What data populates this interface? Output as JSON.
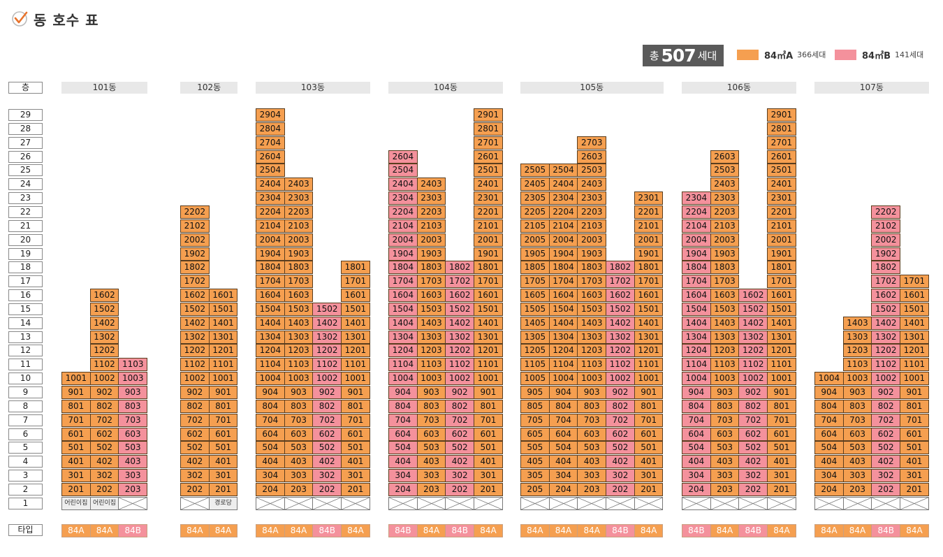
{
  "page_title": "동 호수 표",
  "summary": {
    "prefix": "총",
    "count": "507",
    "suffix": "세대"
  },
  "legend": [
    {
      "label": "84㎡A",
      "count": "366세대",
      "color": "#f59f50"
    },
    {
      "label": "84㎡B",
      "count": "141세대",
      "color": "#f4919c"
    }
  ],
  "floor_header": "층",
  "type_header": "타입",
  "floors": [
    "29",
    "28",
    "27",
    "26",
    "25",
    "24",
    "23",
    "22",
    "21",
    "20",
    "19",
    "18",
    "17",
    "16",
    "15",
    "14",
    "13",
    "12",
    "11",
    "10",
    "9",
    "8",
    "7",
    "6",
    "5",
    "4",
    "3",
    "2",
    "1"
  ],
  "colors": {
    "A": "#f59f50",
    "B": "#f4919c"
  },
  "buildings": [
    {
      "name": "101동",
      "columns": [
        {
          "line": 1,
          "top": 10,
          "type": "84A",
          "ground": "어린이집"
        },
        {
          "line": 2,
          "top": 16,
          "type": "84A",
          "ground": "어린이집"
        },
        {
          "line": 3,
          "top": 11,
          "type": "84B",
          "ground": ""
        }
      ]
    },
    {
      "name": "102동",
      "columns": [
        {
          "line": 2,
          "top": 22,
          "type": "84A",
          "ground": ""
        },
        {
          "line": 1,
          "top": 16,
          "type": "84A",
          "ground": "경로당"
        }
      ]
    },
    {
      "name": "103동",
      "columns": [
        {
          "line": 4,
          "top": 29,
          "type": "84A",
          "ground": ""
        },
        {
          "line": 3,
          "top": 24,
          "type": "84A",
          "ground": ""
        },
        {
          "line": 2,
          "top": 15,
          "type": "84B",
          "ground": ""
        },
        {
          "line": 1,
          "top": 18,
          "type": "84A",
          "ground": ""
        }
      ]
    },
    {
      "name": "104동",
      "columns": [
        {
          "line": 4,
          "top": 26,
          "type": "84B",
          "ground": ""
        },
        {
          "line": 3,
          "top": 24,
          "type": "84A",
          "ground": ""
        },
        {
          "line": 2,
          "top": 18,
          "type": "84B",
          "ground": ""
        },
        {
          "line": 1,
          "top": 29,
          "type": "84A",
          "ground": ""
        }
      ]
    },
    {
      "name": "105동",
      "columns": [
        {
          "line": 5,
          "top": 25,
          "type": "84A",
          "ground": ""
        },
        {
          "line": 4,
          "top": 25,
          "type": "84A",
          "ground": ""
        },
        {
          "line": 3,
          "top": 27,
          "type": "84A",
          "ground": ""
        },
        {
          "line": 2,
          "top": 18,
          "type": "84B",
          "ground": ""
        },
        {
          "line": 1,
          "top": 23,
          "type": "84A",
          "ground": ""
        }
      ]
    },
    {
      "name": "106동",
      "columns": [
        {
          "line": 4,
          "top": 23,
          "type": "84B",
          "ground": ""
        },
        {
          "line": 3,
          "top": 26,
          "type": "84A",
          "ground": ""
        },
        {
          "line": 2,
          "top": 16,
          "type": "84B",
          "ground": ""
        },
        {
          "line": 1,
          "top": 29,
          "type": "84A",
          "ground": ""
        }
      ]
    },
    {
      "name": "107동",
      "columns": [
        {
          "line": 4,
          "top": 10,
          "type": "84A",
          "ground": ""
        },
        {
          "line": 3,
          "top": 14,
          "type": "84A",
          "ground": ""
        },
        {
          "line": 2,
          "top": 22,
          "type": "84B",
          "ground": ""
        },
        {
          "line": 1,
          "top": 17,
          "type": "84A",
          "ground": ""
        }
      ]
    }
  ]
}
